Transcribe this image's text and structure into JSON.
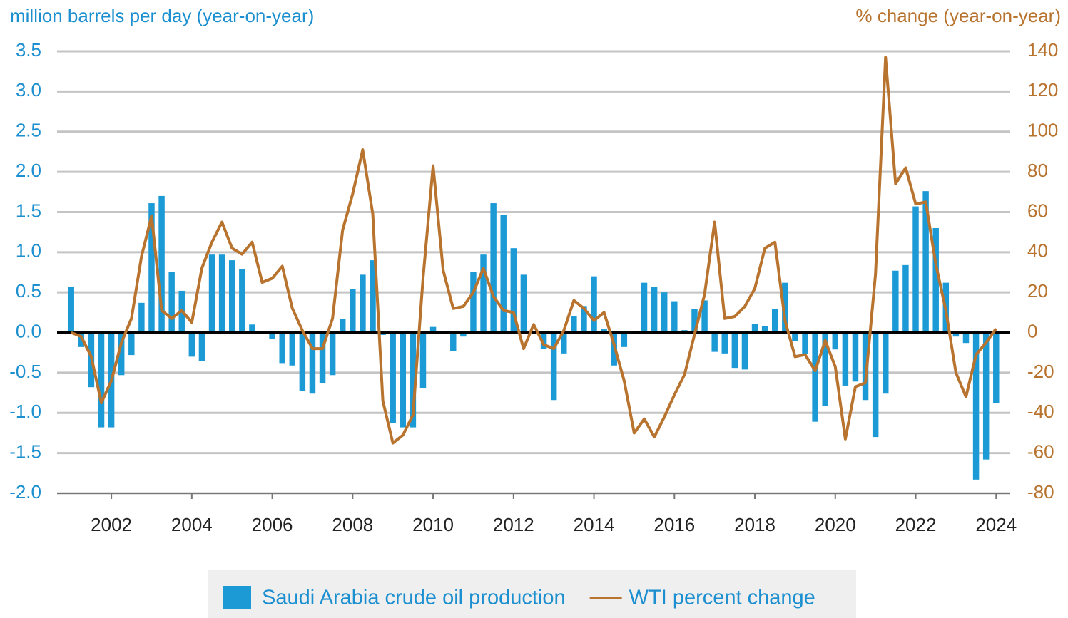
{
  "chart_data": {
    "type": "bar_line",
    "y_label": "million barrels per day (year-on-year)",
    "y2_label": "% change (year-on-year)",
    "x": [
      2001,
      2001.25,
      2001.5,
      2001.75,
      2002,
      2002.25,
      2002.5,
      2002.75,
      2003,
      2003.25,
      2003.5,
      2003.75,
      2004,
      2004.25,
      2004.5,
      2004.75,
      2005,
      2005.25,
      2005.5,
      2005.75,
      2006,
      2006.25,
      2006.5,
      2006.75,
      2007,
      2007.25,
      2007.5,
      2007.75,
      2008,
      2008.25,
      2008.5,
      2008.75,
      2009,
      2009.25,
      2009.5,
      2009.75,
      2010,
      2010.25,
      2010.5,
      2010.75,
      2011,
      2011.25,
      2011.5,
      2011.75,
      2012,
      2012.25,
      2012.5,
      2012.75,
      2013,
      2013.25,
      2013.5,
      2013.75,
      2014,
      2014.25,
      2014.5,
      2014.75,
      2015,
      2015.25,
      2015.5,
      2015.75,
      2016,
      2016.25,
      2016.5,
      2016.75,
      2017,
      2017.25,
      2017.5,
      2017.75,
      2018,
      2018.25,
      2018.5,
      2018.75,
      2019,
      2019.25,
      2019.5,
      2019.75,
      2020,
      2020.25,
      2020.5,
      2020.75,
      2021,
      2021.25,
      2021.5,
      2021.75,
      2022,
      2022.25,
      2022.5,
      2022.75,
      2023,
      2023.25,
      2023.5,
      2023.75,
      2024
    ],
    "series": [
      {
        "name": "Saudi Arabia crude oil production",
        "color": "#1b9ad6",
        "kind": "bar",
        "values": [
          0.57,
          -0.18,
          -0.68,
          -1.18,
          -1.18,
          -0.53,
          -0.28,
          0.37,
          1.61,
          1.7,
          0.75,
          0.52,
          -0.3,
          -0.35,
          0.97,
          0.97,
          0.9,
          0.79,
          0.1,
          0.0,
          -0.08,
          -0.38,
          -0.41,
          -0.73,
          -0.76,
          -0.63,
          -0.53,
          0.17,
          0.54,
          0.72,
          0.9,
          -0.03,
          -1.13,
          -1.18,
          -1.18,
          -0.69,
          0.07,
          -0.02,
          -0.23,
          -0.05,
          0.75,
          0.97,
          1.61,
          1.46,
          1.05,
          0.72,
          0.02,
          -0.2,
          -0.84,
          -0.26,
          0.2,
          0.33,
          0.7,
          0.04,
          -0.41,
          -0.18,
          0.0,
          0.62,
          0.57,
          0.5,
          0.39,
          0.03,
          0.29,
          0.4,
          -0.24,
          -0.26,
          -0.44,
          -0.46,
          0.11,
          0.08,
          0.29,
          0.62,
          -0.11,
          -0.27,
          -1.11,
          -0.91,
          -0.21,
          -0.66,
          -0.61,
          -0.84,
          -1.3,
          -0.76,
          0.77,
          0.84,
          1.57,
          1.76,
          1.3,
          0.62,
          -0.05,
          -0.13,
          -1.83,
          -1.58,
          -0.88
        ]
      },
      {
        "name": "WTI percent change",
        "color": "#b8732e",
        "kind": "line",
        "axis": "y2",
        "values": [
          0,
          -2,
          -12,
          -35,
          -24,
          -5,
          7,
          38,
          58,
          11,
          7,
          11,
          5,
          32,
          45,
          55,
          42,
          39,
          45,
          25,
          27,
          33,
          12,
          1,
          -8,
          -8,
          7,
          51,
          69,
          91,
          59,
          -34,
          -55,
          -51,
          -41,
          27,
          83,
          31,
          12,
          13,
          20,
          32,
          18,
          11,
          10,
          -8,
          4,
          -6,
          -8,
          1,
          16,
          12,
          6,
          10,
          -6,
          -24,
          -50,
          -43,
          -52,
          -42,
          -31,
          -21,
          -1,
          19,
          55,
          7,
          8,
          13,
          22,
          42,
          45,
          6,
          -12,
          -11,
          -19,
          -4,
          -17,
          -53,
          -27,
          -25,
          29,
          137,
          74,
          82,
          64,
          65,
          34,
          11,
          -20,
          -32,
          -11,
          -5,
          2
        ]
      }
    ],
    "xlim": [
      2000.65,
      2024.35
    ],
    "xticks": [
      2002,
      2004,
      2006,
      2008,
      2010,
      2012,
      2014,
      2016,
      2018,
      2020,
      2022,
      2024
    ],
    "ylim": [
      -2,
      3.5
    ],
    "yticks": [
      {
        "value": -2,
        "label": "-2.0"
      },
      -1.5,
      {
        "value": -1,
        "label": "-1.0"
      },
      -0.5,
      {
        "value": 0,
        "label": "0.0"
      },
      0.5,
      {
        "value": 1,
        "label": "1.0"
      },
      1.5,
      {
        "value": 2,
        "label": "2.0"
      },
      2.5,
      {
        "value": 3,
        "label": "3.0"
      },
      3.5
    ],
    "y2lim": [
      -80,
      140
    ],
    "y2ticks": [
      -80,
      -60,
      -40,
      -20,
      0,
      20,
      40,
      60,
      80,
      100,
      120,
      140
    ],
    "grid": true,
    "legend": "bottom"
  }
}
